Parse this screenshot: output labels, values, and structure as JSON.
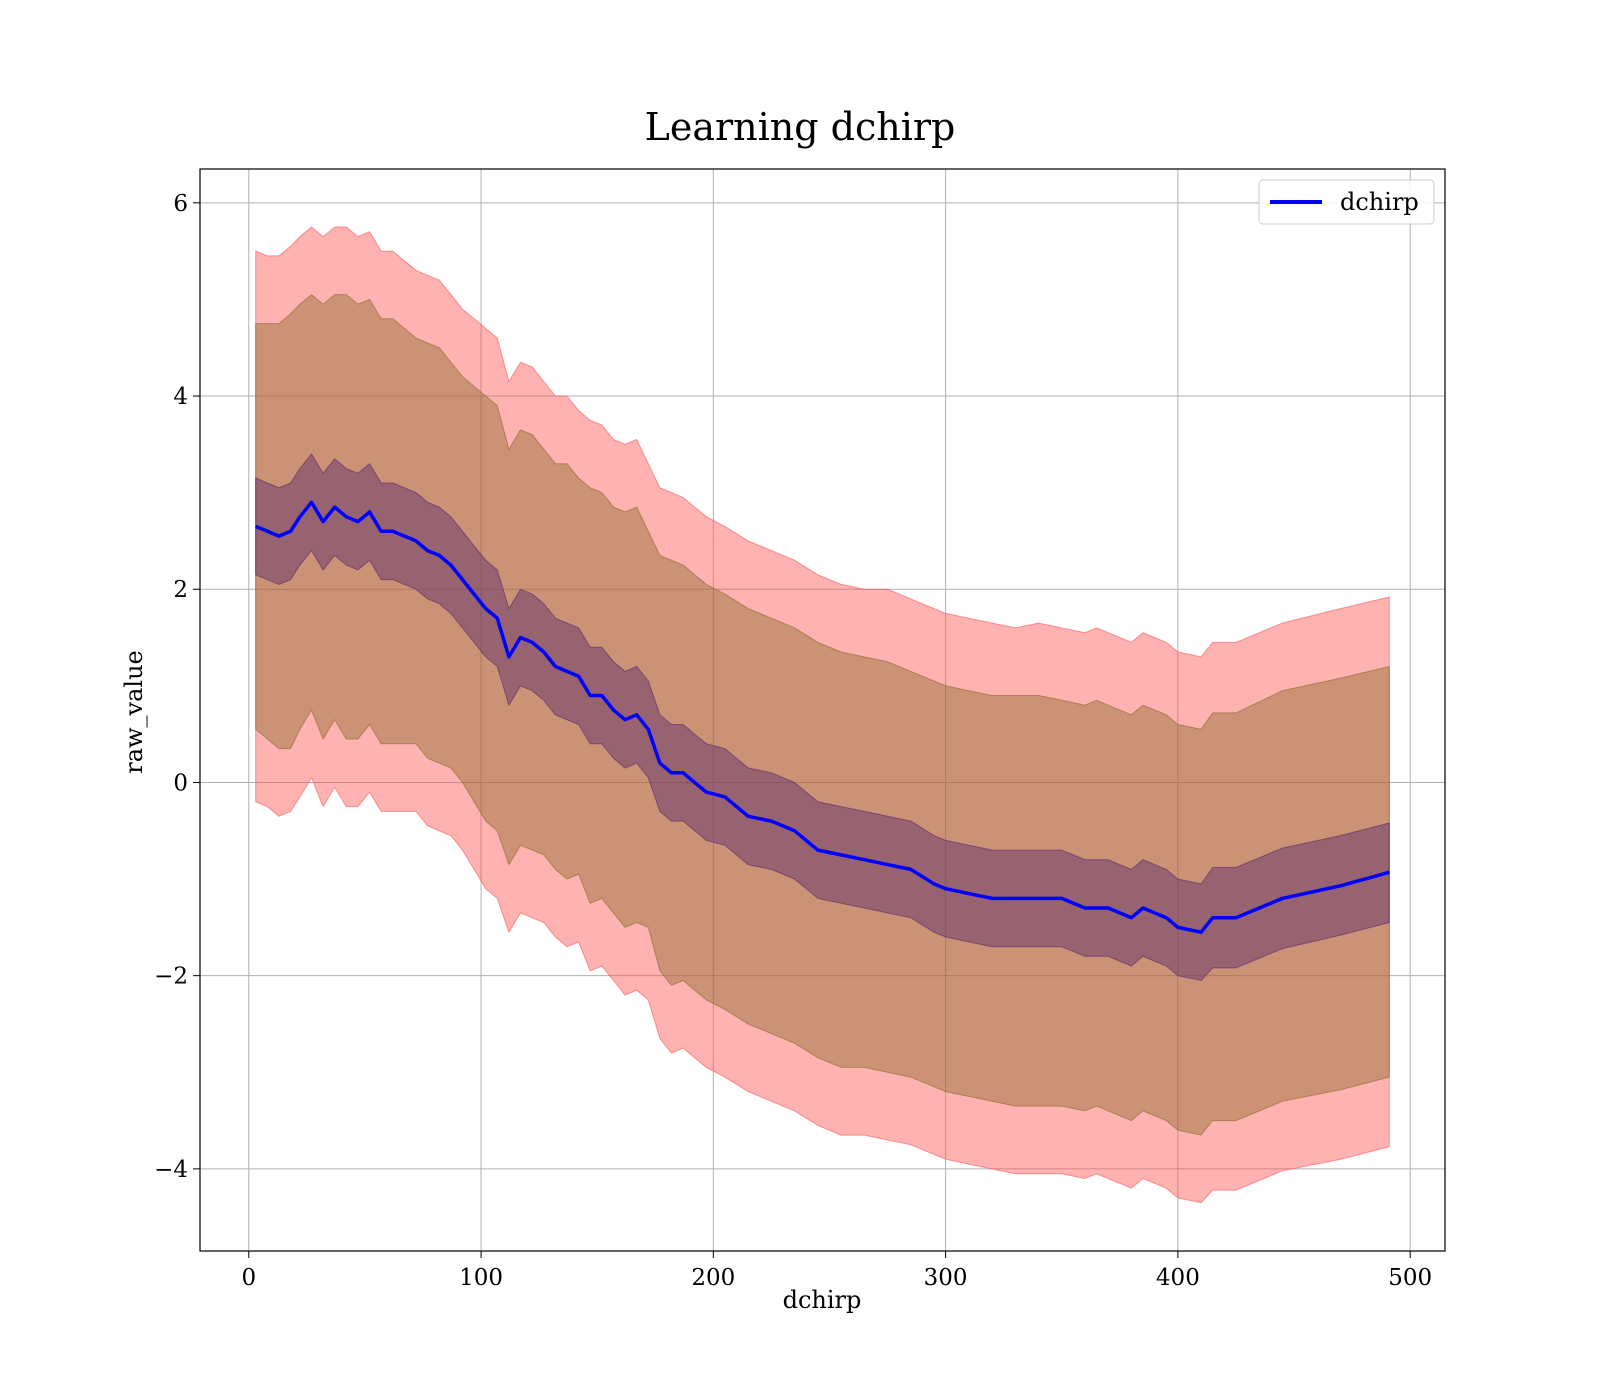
{
  "chart_data": {
    "type": "line",
    "title": "Learning dchirp",
    "xlabel": "dchirp",
    "ylabel": "raw_value",
    "xlim": [
      -21,
      515
    ],
    "ylim": [
      -4.85,
      6.35
    ],
    "xticks": [
      0,
      100,
      200,
      300,
      400,
      500
    ],
    "xtick_labels": [
      "0",
      "100",
      "200",
      "300",
      "400",
      "500"
    ],
    "yticks": [
      -4,
      -2,
      0,
      2,
      4,
      6
    ],
    "ytick_labels": [
      "−4",
      "−2",
      "0",
      "2",
      "4",
      "6"
    ],
    "grid": true,
    "legend": {
      "placement": "top-right",
      "entries": [
        "dchirp"
      ]
    },
    "colors": {
      "line": "#0000ff",
      "band_outer": "#ff5555",
      "band_middle": "#8b6a2b",
      "band_inner": "#5a2a6a"
    },
    "series": [
      {
        "name": "dchirp",
        "x": [
          3,
          8,
          13,
          18,
          22,
          27,
          32,
          37,
          42,
          47,
          52,
          57,
          62,
          67,
          72,
          77,
          82,
          87,
          92,
          97,
          102,
          107,
          112,
          117,
          122,
          127,
          132,
          137,
          142,
          147,
          152,
          157,
          162,
          167,
          172,
          177,
          182,
          187,
          192,
          197,
          205,
          215,
          225,
          235,
          245,
          255,
          265,
          275,
          285,
          295,
          300,
          310,
          320,
          330,
          340,
          350,
          360,
          365,
          370,
          380,
          385,
          395,
          400,
          410,
          415,
          425,
          445,
          470,
          491
        ],
        "y": [
          2.65,
          2.6,
          2.55,
          2.6,
          2.75,
          2.9,
          2.7,
          2.85,
          2.75,
          2.7,
          2.8,
          2.6,
          2.6,
          2.55,
          2.5,
          2.4,
          2.35,
          2.25,
          2.1,
          1.95,
          1.8,
          1.7,
          1.3,
          1.5,
          1.45,
          1.35,
          1.2,
          1.15,
          1.1,
          0.9,
          0.9,
          0.75,
          0.65,
          0.7,
          0.55,
          0.2,
          0.1,
          0.1,
          0.0,
          -0.1,
          -0.15,
          -0.35,
          -0.4,
          -0.5,
          -0.7,
          -0.75,
          -0.8,
          -0.85,
          -0.9,
          -1.05,
          -1.1,
          -1.15,
          -1.2,
          -1.2,
          -1.2,
          -1.2,
          -1.3,
          -1.3,
          -1.3,
          -1.4,
          -1.3,
          -1.4,
          -1.5,
          -1.55,
          -1.4,
          -1.4,
          -1.2,
          -1.07,
          -0.93
        ],
        "band_outer_upper": [
          5.5,
          5.45,
          5.45,
          5.55,
          5.65,
          5.75,
          5.65,
          5.75,
          5.75,
          5.65,
          5.7,
          5.5,
          5.5,
          5.4,
          5.3,
          5.25,
          5.2,
          5.05,
          4.9,
          4.8,
          4.7,
          4.6,
          4.15,
          4.35,
          4.3,
          4.15,
          4.0,
          4.0,
          3.85,
          3.75,
          3.7,
          3.55,
          3.5,
          3.55,
          3.3,
          3.05,
          3.0,
          2.95,
          2.85,
          2.75,
          2.65,
          2.5,
          2.4,
          2.3,
          2.15,
          2.05,
          2.0,
          2.0,
          1.9,
          1.8,
          1.75,
          1.7,
          1.65,
          1.6,
          1.65,
          1.6,
          1.55,
          1.6,
          1.55,
          1.45,
          1.55,
          1.45,
          1.35,
          1.3,
          1.45,
          1.45,
          1.65,
          1.8,
          1.92
        ],
        "band_middle_upper": [
          4.75,
          4.75,
          4.75,
          4.85,
          4.95,
          5.05,
          4.95,
          5.05,
          5.05,
          4.95,
          5.0,
          4.8,
          4.8,
          4.7,
          4.6,
          4.55,
          4.5,
          4.35,
          4.2,
          4.1,
          4.0,
          3.9,
          3.45,
          3.65,
          3.6,
          3.45,
          3.3,
          3.3,
          3.15,
          3.05,
          3.0,
          2.85,
          2.8,
          2.85,
          2.6,
          2.35,
          2.3,
          2.25,
          2.15,
          2.05,
          1.95,
          1.8,
          1.7,
          1.6,
          1.45,
          1.35,
          1.3,
          1.25,
          1.15,
          1.05,
          1.0,
          0.95,
          0.9,
          0.9,
          0.9,
          0.85,
          0.8,
          0.85,
          0.8,
          0.7,
          0.8,
          0.7,
          0.6,
          0.55,
          0.72,
          0.72,
          0.95,
          1.08,
          1.2
        ],
        "band_inner_upper": [
          3.15,
          3.1,
          3.05,
          3.1,
          3.25,
          3.4,
          3.2,
          3.35,
          3.25,
          3.2,
          3.3,
          3.1,
          3.1,
          3.05,
          3.0,
          2.9,
          2.85,
          2.75,
          2.6,
          2.45,
          2.3,
          2.2,
          1.8,
          2.0,
          1.95,
          1.85,
          1.7,
          1.65,
          1.6,
          1.4,
          1.4,
          1.25,
          1.15,
          1.2,
          1.05,
          0.7,
          0.6,
          0.6,
          0.5,
          0.4,
          0.35,
          0.15,
          0.1,
          0.0,
          -0.2,
          -0.25,
          -0.3,
          -0.35,
          -0.4,
          -0.55,
          -0.6,
          -0.65,
          -0.7,
          -0.7,
          -0.7,
          -0.7,
          -0.8,
          -0.8,
          -0.8,
          -0.9,
          -0.8,
          -0.9,
          -1.0,
          -1.05,
          -0.88,
          -0.88,
          -0.68,
          -0.55,
          -0.42
        ],
        "band_inner_lower": [
          2.15,
          2.1,
          2.05,
          2.1,
          2.25,
          2.4,
          2.2,
          2.35,
          2.25,
          2.2,
          2.3,
          2.1,
          2.1,
          2.05,
          2.0,
          1.9,
          1.85,
          1.75,
          1.6,
          1.45,
          1.3,
          1.2,
          0.8,
          1.0,
          0.95,
          0.85,
          0.7,
          0.65,
          0.6,
          0.4,
          0.4,
          0.25,
          0.15,
          0.2,
          0.05,
          -0.3,
          -0.4,
          -0.4,
          -0.5,
          -0.6,
          -0.65,
          -0.85,
          -0.9,
          -1.0,
          -1.2,
          -1.25,
          -1.3,
          -1.35,
          -1.4,
          -1.55,
          -1.6,
          -1.65,
          -1.7,
          -1.7,
          -1.7,
          -1.7,
          -1.8,
          -1.8,
          -1.8,
          -1.9,
          -1.8,
          -1.9,
          -2.0,
          -2.05,
          -1.92,
          -1.92,
          -1.72,
          -1.58,
          -1.45
        ],
        "band_middle_lower": [
          0.55,
          0.45,
          0.35,
          0.35,
          0.55,
          0.75,
          0.45,
          0.65,
          0.45,
          0.45,
          0.6,
          0.4,
          0.4,
          0.4,
          0.4,
          0.25,
          0.2,
          0.15,
          0.0,
          -0.2,
          -0.4,
          -0.5,
          -0.85,
          -0.65,
          -0.7,
          -0.75,
          -0.9,
          -1.0,
          -0.95,
          -1.25,
          -1.2,
          -1.35,
          -1.5,
          -1.45,
          -1.5,
          -1.95,
          -2.1,
          -2.05,
          -2.15,
          -2.25,
          -2.35,
          -2.5,
          -2.6,
          -2.7,
          -2.85,
          -2.95,
          -2.95,
          -3.0,
          -3.05,
          -3.15,
          -3.2,
          -3.25,
          -3.3,
          -3.35,
          -3.35,
          -3.35,
          -3.4,
          -3.35,
          -3.4,
          -3.5,
          -3.4,
          -3.5,
          -3.6,
          -3.65,
          -3.5,
          -3.5,
          -3.3,
          -3.18,
          -3.05
        ],
        "band_outer_lower": [
          -0.2,
          -0.25,
          -0.35,
          -0.3,
          -0.15,
          0.05,
          -0.25,
          -0.05,
          -0.25,
          -0.25,
          -0.1,
          -0.3,
          -0.3,
          -0.3,
          -0.3,
          -0.45,
          -0.5,
          -0.55,
          -0.7,
          -0.9,
          -1.1,
          -1.2,
          -1.55,
          -1.35,
          -1.4,
          -1.45,
          -1.6,
          -1.7,
          -1.65,
          -1.95,
          -1.9,
          -2.05,
          -2.2,
          -2.15,
          -2.25,
          -2.65,
          -2.8,
          -2.75,
          -2.85,
          -2.95,
          -3.05,
          -3.2,
          -3.3,
          -3.4,
          -3.55,
          -3.65,
          -3.65,
          -3.7,
          -3.75,
          -3.85,
          -3.9,
          -3.95,
          -4.0,
          -4.05,
          -4.05,
          -4.05,
          -4.1,
          -4.05,
          -4.1,
          -4.2,
          -4.1,
          -4.2,
          -4.3,
          -4.35,
          -4.22,
          -4.22,
          -4.02,
          -3.9,
          -3.77
        ]
      }
    ]
  }
}
